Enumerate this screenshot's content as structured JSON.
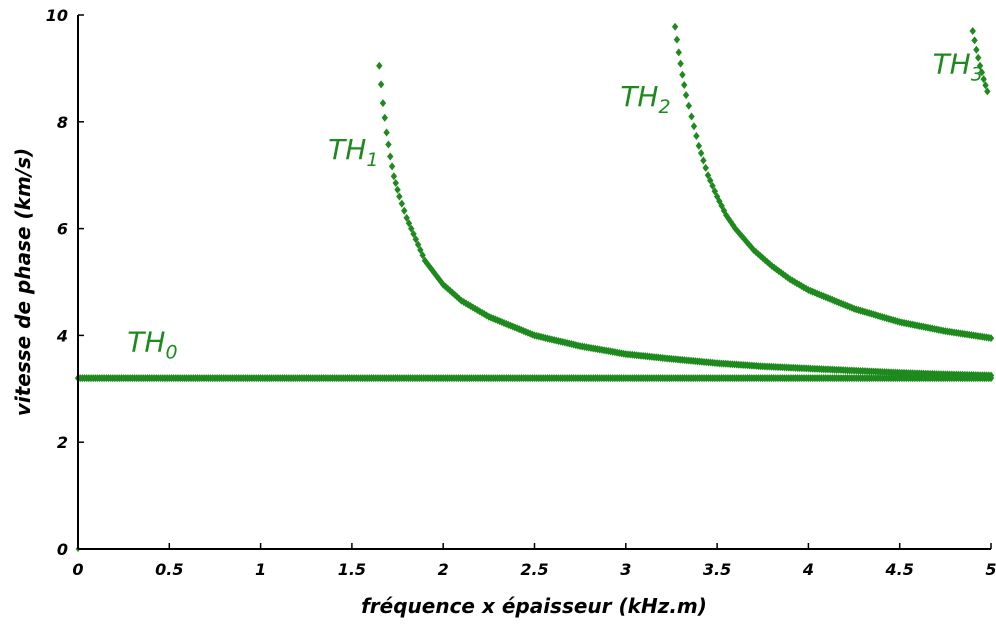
{
  "chart_data": {
    "type": "scatter",
    "title": "",
    "xlabel": "fréquence x épaisseur (kHz.m)",
    "ylabel": "vitesse de phase (km/s)",
    "xlim": [
      0,
      5
    ],
    "ylim": [
      0,
      10
    ],
    "xticks": [
      "0",
      "0.5",
      "1",
      "1.5",
      "2",
      "2.5",
      "3",
      "3.5",
      "4",
      "4.5",
      "5"
    ],
    "yticks": [
      "0",
      "2",
      "4",
      "6",
      "8",
      "10"
    ],
    "grid": false,
    "marker_color": "#1e8a1e",
    "marker": "diamond",
    "series": [
      {
        "name": "TH",
        "subscript": "0",
        "label_at": [
          0.27,
          3.7
        ],
        "points": [
          [
            0.0,
            3.2
          ],
          [
            0.25,
            3.2
          ],
          [
            0.5,
            3.2
          ],
          [
            0.75,
            3.2
          ],
          [
            1.0,
            3.2
          ],
          [
            1.25,
            3.2
          ],
          [
            1.5,
            3.2
          ],
          [
            1.75,
            3.2
          ],
          [
            2.0,
            3.2
          ],
          [
            2.25,
            3.2
          ],
          [
            2.5,
            3.2
          ],
          [
            2.75,
            3.2
          ],
          [
            3.0,
            3.2
          ],
          [
            3.25,
            3.2
          ],
          [
            3.5,
            3.2
          ],
          [
            3.75,
            3.2
          ],
          [
            4.0,
            3.2
          ],
          [
            4.25,
            3.2
          ],
          [
            4.5,
            3.2
          ],
          [
            4.75,
            3.2
          ],
          [
            5.0,
            3.2
          ]
        ]
      },
      {
        "name": "TH",
        "subscript": "1",
        "label_at": [
          1.37,
          7.3
        ],
        "points": [
          [
            1.65,
            9.05
          ],
          [
            1.67,
            8.35
          ],
          [
            1.69,
            7.8
          ],
          [
            1.71,
            7.35
          ],
          [
            1.73,
            6.98
          ],
          [
            1.76,
            6.6
          ],
          [
            1.8,
            6.2
          ],
          [
            1.85,
            5.8
          ],
          [
            1.9,
            5.4
          ],
          [
            2.0,
            4.95
          ],
          [
            2.1,
            4.65
          ],
          [
            2.25,
            4.35
          ],
          [
            2.5,
            4.0
          ],
          [
            2.75,
            3.8
          ],
          [
            3.0,
            3.65
          ],
          [
            3.25,
            3.56
          ],
          [
            3.5,
            3.48
          ],
          [
            3.75,
            3.42
          ],
          [
            4.0,
            3.38
          ],
          [
            4.25,
            3.34
          ],
          [
            4.5,
            3.3
          ],
          [
            4.75,
            3.27
          ],
          [
            5.0,
            3.25
          ]
        ]
      },
      {
        "name": "TH",
        "subscript": "2",
        "label_at": [
          2.97,
          8.3
        ],
        "points": [
          [
            3.27,
            9.78
          ],
          [
            3.29,
            9.3
          ],
          [
            3.31,
            8.88
          ],
          [
            3.33,
            8.5
          ],
          [
            3.36,
            8.1
          ],
          [
            3.4,
            7.55
          ],
          [
            3.45,
            7.0
          ],
          [
            3.5,
            6.6
          ],
          [
            3.55,
            6.25
          ],
          [
            3.6,
            6.0
          ],
          [
            3.7,
            5.6
          ],
          [
            3.8,
            5.3
          ],
          [
            3.9,
            5.05
          ],
          [
            4.0,
            4.85
          ],
          [
            4.25,
            4.5
          ],
          [
            4.5,
            4.25
          ],
          [
            4.75,
            4.08
          ],
          [
            5.0,
            3.95
          ]
        ]
      },
      {
        "name": "TH",
        "subscript": "3",
        "label_at": [
          4.68,
          8.9
        ],
        "points": [
          [
            4.9,
            9.7
          ],
          [
            4.92,
            9.35
          ],
          [
            4.94,
            9.05
          ],
          [
            4.96,
            8.8
          ],
          [
            4.98,
            8.57
          ]
        ]
      }
    ]
  }
}
